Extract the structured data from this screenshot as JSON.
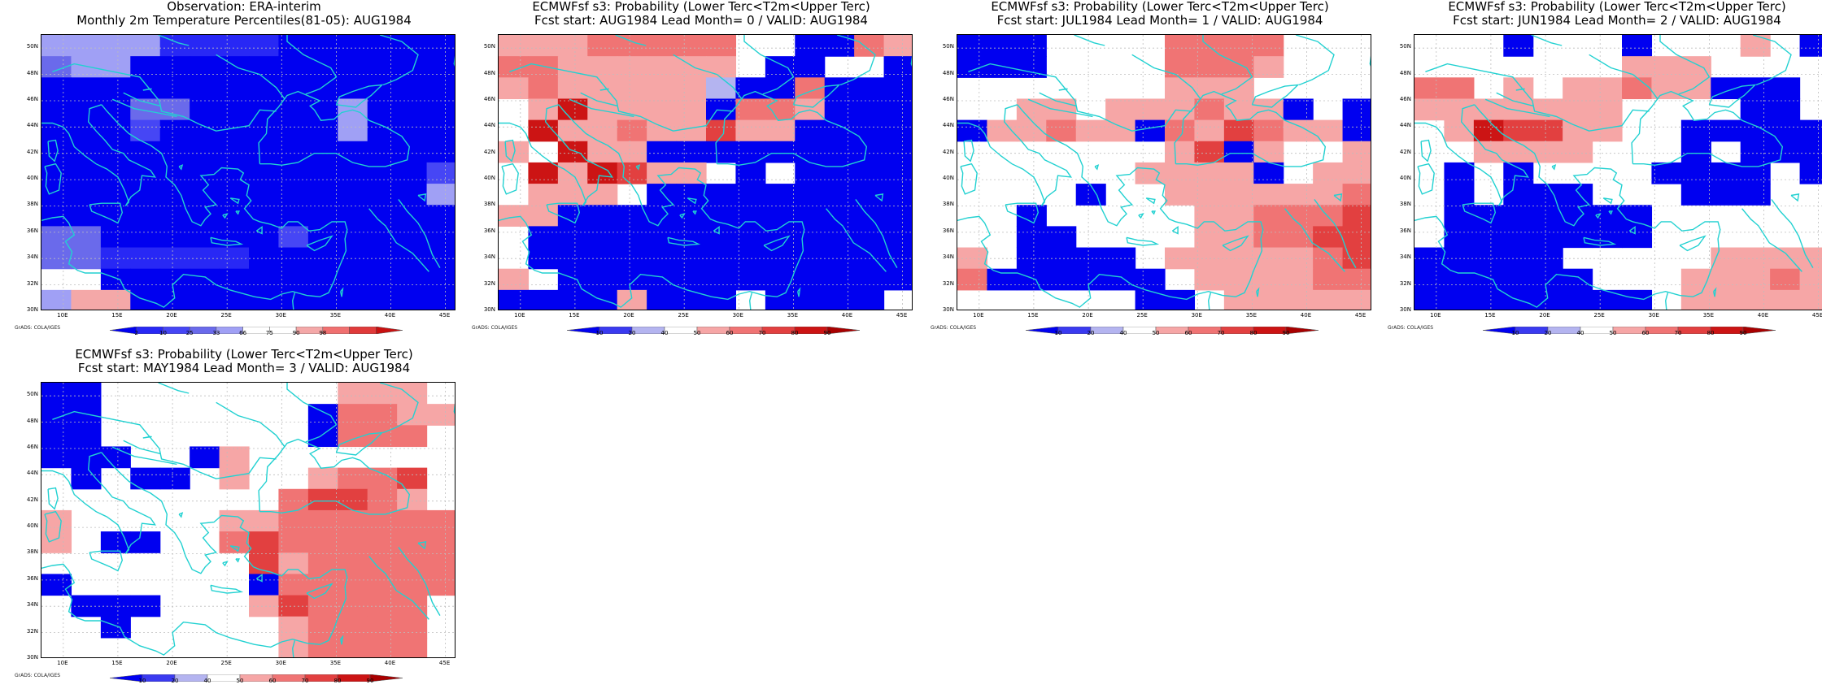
{
  "colors": {
    "coast": "#22d1d1",
    "grid": "#bdbdbd",
    "obs_scale": [
      "#0000f0",
      "#2828f5",
      "#4646f5",
      "#6a6aeb",
      "#a0a0f5",
      "#ffffff",
      "#ffffff",
      "#f4a8a8",
      "#f07070",
      "#e03a3a",
      "#c81010"
    ],
    "prob_scale": [
      "#0000f0",
      "#3a3af0",
      "#b4b4f0",
      "#ffffff",
      "#f6a6a6",
      "#f07474",
      "#e24040",
      "#cc1414",
      "#a80000"
    ]
  },
  "axes": {
    "y_labels": [
      "50N",
      "48N",
      "46N",
      "44N",
      "42N",
      "40N",
      "38N",
      "36N",
      "34N",
      "32N",
      "30N"
    ],
    "x_labels": [
      "10E",
      "15E",
      "20E",
      "25E",
      "30E",
      "35E",
      "40E",
      "45E"
    ]
  },
  "credit": "GrADS: COLA/IGES",
  "panels": [
    {
      "id": "obs",
      "title1": "Observation: ERA-interim",
      "title2": "Monthly 2m Temperature Percentiles(81-05): AUG1984",
      "colorbar": {
        "type": "obs",
        "ticks": [
          "2",
          "10",
          "25",
          "33",
          "66",
          "75",
          "90",
          "98"
        ]
      },
      "grid": [
        "44441111000000",
        "34400000000000",
        "00000000000000",
        "00033000004000",
        "00020000004000",
        "00000000000000",
        "00000000000002",
        "00000000000004",
        "00000000000000",
        "33000000200000",
        "33111110000000",
        "66000000000000",
        "47700000000000"
      ]
    },
    {
      "id": "lead0",
      "title1": "ECMWFsf s3: Probability (Lower Terc<T2m<Upper Terc)",
      "title2": "Fcst start: AUG1984  Lead Month= 0 / VALID: AUG1984",
      "colorbar": {
        "type": "prob",
        "ticks": [
          "10",
          "20",
          "40",
          "50",
          "60",
          "70",
          "80",
          "90"
        ]
      },
      "grid": [
        "44455555330054",
        "55444444300330",
        "45444442005000",
        "34744440554000",
        "37445446440000",
        "43744000000000",
        "37476443030000",
        "34443000000000",
        "44000000000000",
        "30000000000000",
        "30000000000000",
        "43000000000000",
        "00004000300003"
      ]
    },
    {
      "id": "lead1",
      "title1": "ECMWFsf s3: Probability (Lower Terc<T2m<Upper Terc)",
      "title2": "Fcst start: JUL1984  Lead Month= 1 / VALID: AUG1984",
      "colorbar": {
        "type": "prob",
        "ticks": [
          "10",
          "20",
          "40",
          "50",
          "60",
          "70",
          "80",
          "90"
        ]
      },
      "grid": [
        "00033335555333",
        "00033335554333",
        "33333334443333",
        "33443444544030",
        "04454405465440",
        "33333334604334",
        "33333344440344",
        "33330334444445",
        "33033333445556",
        "33003333445566",
        "43000034444456",
        "50000003444455",
        "33333300344444"
      ]
    },
    {
      "id": "lead2",
      "title1": "ECMWFsf s3: Probability (Lower Terc<T2m<Upper Terc)",
      "title2": "Fcst start: JUN1984  Lead Month= 2 / VALID: AUG1984",
      "colorbar": {
        "type": "prob",
        "ticks": [
          "10",
          "20",
          "40",
          "50",
          "60",
          "70",
          "80",
          "90"
        ]
      },
      "grid": [
        "33303330333430",
        "33333334443333",
        "55343445440003",
        "44444443333003",
        "34766443300000",
        "33444433303000",
        "30303333000030",
        "30300033300033",
        "30000000333333",
        "30000000333333",
        "00000333334444",
        "00000033344454",
        "00000000344444"
      ]
    },
    {
      "id": "lead3",
      "title1": "ECMWFsf s3: Probability (Lower Terc<T2m<Upper Terc)",
      "title2": "Fcst start: MAY1984  Lead Month= 3 / VALID: AUG1984",
      "colorbar": {
        "type": "prob",
        "ticks": [
          "10",
          "20",
          "40",
          "50",
          "60",
          "70",
          "80",
          "90"
        ]
      },
      "grid": [
        "00333333334443",
        "00333333305544",
        "00333333305553",
        "00033043333333",
        "30300343345563",
        "33333333566543",
        "43333344555555",
        "43003356555555",
        "33333336455555",
        "03333330555555",
        "30003334655553",
        "33033333455553",
        "33333333455553"
      ]
    }
  ]
}
